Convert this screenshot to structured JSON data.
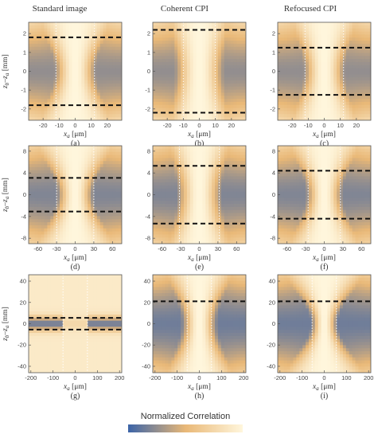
{
  "figure": {
    "column_titles": [
      "Standard image",
      "Coherent CPI",
      "Refocused CPI"
    ],
    "y_label_main": "z",
    "y_label_sub_b": "b",
    "y_label_dash": "–",
    "y_label_sub_a": "a",
    "y_label_unit": " [mm]",
    "x_label_main": "x",
    "x_label_sub": "a",
    "x_label_unit": " [μm]",
    "colorbar_label": "Normalized Correlation",
    "colors": {
      "low": "#3b64a8",
      "mid": "#e9b877",
      "high": "#fff6dc"
    }
  },
  "chart_data": [
    {
      "type": "heatmap",
      "label": "(a)",
      "row": 0,
      "col": 0,
      "x_ticks": [
        -20,
        -10,
        0,
        10,
        20
      ],
      "y_ticks": [
        -2,
        -1,
        0,
        1,
        2
      ],
      "xlim": [
        -29,
        29
      ],
      "ylim": [
        -2.6,
        2.6
      ],
      "dashed_lines_y": [
        1.8,
        -1.8
      ],
      "dotted_lines_x": [
        -12,
        12
      ]
    },
    {
      "type": "heatmap",
      "label": "(b)",
      "row": 0,
      "col": 1,
      "x_ticks": [
        -20,
        -10,
        0,
        10,
        20
      ],
      "y_ticks": [
        -2,
        -1,
        0,
        1,
        2
      ],
      "xlim": [
        -29,
        29
      ],
      "ylim": [
        -2.6,
        2.6
      ],
      "dashed_lines_y": [
        2.2,
        -2.2
      ],
      "dotted_lines_x": [
        -10,
        10
      ]
    },
    {
      "type": "heatmap",
      "label": "(c)",
      "row": 0,
      "col": 2,
      "x_ticks": [
        -20,
        -10,
        0,
        10,
        20
      ],
      "y_ticks": [
        -2,
        -1,
        0,
        1,
        2
      ],
      "xlim": [
        -29,
        29
      ],
      "ylim": [
        -2.6,
        2.6
      ],
      "dashed_lines_y": [
        1.25,
        -1.25
      ],
      "dotted_lines_x": [
        -12,
        12
      ]
    },
    {
      "type": "heatmap",
      "label": "(d)",
      "row": 1,
      "col": 0,
      "x_ticks": [
        -60,
        -30,
        0,
        30,
        60
      ],
      "y_ticks": [
        -8,
        -4,
        0,
        4,
        8
      ],
      "xlim": [
        -75,
        75
      ],
      "ylim": [
        -9,
        9
      ],
      "dashed_lines_y": [
        3.1,
        -3.1
      ],
      "dotted_lines_x": [
        -30,
        30
      ]
    },
    {
      "type": "heatmap",
      "label": "(e)",
      "row": 1,
      "col": 1,
      "x_ticks": [
        -60,
        -30,
        0,
        30,
        60
      ],
      "y_ticks": [
        -8,
        -4,
        0,
        4,
        8
      ],
      "xlim": [
        -75,
        75
      ],
      "ylim": [
        -9,
        9
      ],
      "dashed_lines_y": [
        5.3,
        -5.3
      ],
      "dotted_lines_x": [
        -32,
        32
      ]
    },
    {
      "type": "heatmap",
      "label": "(f)",
      "row": 1,
      "col": 2,
      "x_ticks": [
        -60,
        -30,
        0,
        30,
        60
      ],
      "y_ticks": [
        -8,
        -4,
        0,
        4,
        8
      ],
      "xlim": [
        -75,
        75
      ],
      "ylim": [
        -9,
        9
      ],
      "dashed_lines_y": [
        4.4,
        -4.4
      ],
      "dotted_lines_x": [
        -26,
        26
      ]
    },
    {
      "type": "heatmap",
      "label": "(g)",
      "row": 2,
      "col": 0,
      "x_ticks": [
        -200,
        -100,
        0,
        100,
        200
      ],
      "y_ticks": [
        -40,
        -20,
        0,
        20,
        40
      ],
      "xlim": [
        -210,
        210
      ],
      "ylim": [
        -46,
        46
      ],
      "dashed_lines_y": [
        5.5,
        -5.5
      ],
      "dotted_lines_x": [
        -55,
        55
      ]
    },
    {
      "type": "heatmap",
      "label": "(h)",
      "row": 2,
      "col": 1,
      "x_ticks": [
        -200,
        -100,
        0,
        100,
        200
      ],
      "y_ticks": [
        -40,
        -20,
        0,
        20,
        40
      ],
      "xlim": [
        -210,
        210
      ],
      "ylim": [
        -46,
        46
      ],
      "dashed_lines_y": [
        21
      ],
      "dotted_lines_x": [
        -55,
        55
      ]
    },
    {
      "type": "heatmap",
      "label": "(i)",
      "row": 2,
      "col": 2,
      "x_ticks": [
        -200,
        -100,
        0,
        100,
        200
      ],
      "y_ticks": [
        -40,
        -20,
        0,
        20,
        40
      ],
      "xlim": [
        -210,
        210
      ],
      "ylim": [
        -46,
        46
      ],
      "dashed_lines_y": [
        21
      ],
      "dotted_lines_x": [
        -55,
        55
      ]
    }
  ]
}
